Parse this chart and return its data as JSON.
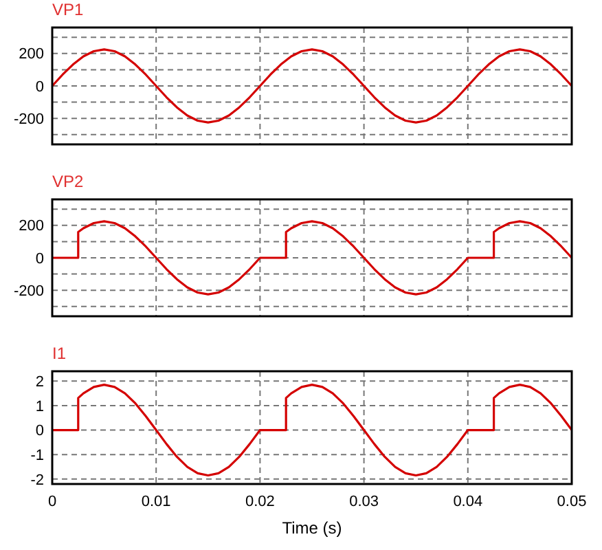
{
  "chart_data": [
    {
      "type": "line",
      "title": "VP1",
      "xlim": [
        0,
        0.05
      ],
      "xticks": [
        0,
        0.01,
        0.02,
        0.03,
        0.04,
        0.05
      ],
      "ylim": [
        -360,
        360
      ],
      "yticks": [
        {
          "value": -300,
          "label": null
        },
        -200,
        {
          "value": -100,
          "label": null
        },
        0,
        {
          "value": 100,
          "label": null
        },
        200,
        {
          "value": 300,
          "label": null
        }
      ],
      "grid": true,
      "tick_labels": "y",
      "line_style": "solid",
      "series": [
        {
          "color": "#d40000",
          "x": [
            0,
            0.001,
            0.002,
            0.003,
            0.004,
            0.005,
            0.006,
            0.007,
            0.008,
            0.009,
            0.01,
            0.011,
            0.012,
            0.013,
            0.014,
            0.015,
            0.016,
            0.017,
            0.018,
            0.019,
            0.02,
            0.021,
            0.022,
            0.023,
            0.024,
            0.025,
            0.026,
            0.027,
            0.028,
            0.029,
            0.03,
            0.031,
            0.032,
            0.033,
            0.034,
            0.035,
            0.036,
            0.037,
            0.038,
            0.039,
            0.04,
            0.041,
            0.042,
            0.043,
            0.044,
            0.045,
            0.046,
            0.047,
            0.048,
            0.049,
            0.05
          ],
          "values": [
            0,
            70,
            132,
            182,
            214,
            225,
            214,
            182,
            132,
            70,
            0,
            -70,
            -132,
            -182,
            -214,
            -225,
            -214,
            -182,
            -132,
            -70,
            0,
            70,
            132,
            182,
            214,
            225,
            214,
            182,
            132,
            70,
            0,
            -70,
            -132,
            -182,
            -214,
            -225,
            -214,
            -182,
            -132,
            -70,
            0,
            70,
            132,
            182,
            214,
            225,
            214,
            182,
            132,
            70,
            0
          ]
        }
      ]
    },
    {
      "type": "line",
      "title": "VP2",
      "xlim": [
        0,
        0.05
      ],
      "xticks": [
        0,
        0.01,
        0.02,
        0.03,
        0.04,
        0.05
      ],
      "ylim": [
        -360,
        360
      ],
      "yticks": [
        {
          "value": -300,
          "label": null
        },
        -200,
        {
          "value": -100,
          "label": null
        },
        0,
        {
          "value": 100,
          "label": null
        },
        200,
        {
          "value": 300,
          "label": null
        }
      ],
      "grid": true,
      "tick_labels": "y",
      "line_style": "solid",
      "series": [
        {
          "color": "#d40000",
          "x": [
            0,
            0.001,
            0.002,
            0.0025,
            0.0025,
            0.003,
            0.004,
            0.005,
            0.006,
            0.007,
            0.008,
            0.009,
            0.01,
            0.011,
            0.012,
            0.013,
            0.014,
            0.015,
            0.016,
            0.017,
            0.018,
            0.019,
            0.02,
            0.021,
            0.022,
            0.0225,
            0.0225,
            0.023,
            0.024,
            0.025,
            0.026,
            0.027,
            0.028,
            0.029,
            0.03,
            0.031,
            0.032,
            0.033,
            0.034,
            0.035,
            0.036,
            0.037,
            0.038,
            0.039,
            0.04,
            0.041,
            0.042,
            0.0425,
            0.0425,
            0.043,
            0.044,
            0.045,
            0.046,
            0.047,
            0.048,
            0.049,
            0.05
          ],
          "values": [
            0,
            0,
            0,
            0,
            159,
            182,
            214,
            225,
            214,
            182,
            132,
            70,
            0,
            -70,
            -132,
            -182,
            -214,
            -225,
            -214,
            -182,
            -132,
            -70,
            0,
            0,
            0,
            0,
            159,
            182,
            214,
            225,
            214,
            182,
            132,
            70,
            0,
            -70,
            -132,
            -182,
            -214,
            -225,
            -214,
            -182,
            -132,
            -70,
            0,
            0,
            0,
            0,
            159,
            182,
            214,
            225,
            214,
            182,
            132,
            70,
            0
          ]
        }
      ]
    },
    {
      "type": "line",
      "title": "I1",
      "xlabel": "Time (s)",
      "xlim": [
        0,
        0.05
      ],
      "xticks": [
        0,
        0.01,
        0.02,
        0.03,
        0.04,
        0.05
      ],
      "ylim": [
        -2.2,
        2.4
      ],
      "yticks": [
        -2,
        -1,
        0,
        1,
        2
      ],
      "grid": true,
      "line_style": "solid",
      "series": [
        {
          "color": "#d40000",
          "x": [
            0,
            0.001,
            0.002,
            0.0025,
            0.0025,
            0.003,
            0.004,
            0.005,
            0.006,
            0.007,
            0.008,
            0.009,
            0.01,
            0.011,
            0.012,
            0.013,
            0.014,
            0.015,
            0.016,
            0.017,
            0.018,
            0.019,
            0.02,
            0.021,
            0.022,
            0.0225,
            0.0225,
            0.023,
            0.024,
            0.025,
            0.026,
            0.027,
            0.028,
            0.029,
            0.03,
            0.031,
            0.032,
            0.033,
            0.034,
            0.035,
            0.036,
            0.037,
            0.038,
            0.039,
            0.04,
            0.041,
            0.042,
            0.0425,
            0.0425,
            0.043,
            0.044,
            0.045,
            0.046,
            0.047,
            0.048,
            0.049,
            0.05
          ],
          "values": [
            0,
            0,
            0,
            0,
            1.31,
            1.5,
            1.76,
            1.85,
            1.76,
            1.5,
            1.09,
            0.57,
            0,
            -0.57,
            -1.09,
            -1.5,
            -1.76,
            -1.85,
            -1.76,
            -1.5,
            -1.09,
            -0.57,
            0,
            0,
            0,
            0,
            1.31,
            1.5,
            1.76,
            1.85,
            1.76,
            1.5,
            1.09,
            0.57,
            0,
            -0.57,
            -1.09,
            -1.5,
            -1.76,
            -1.85,
            -1.76,
            -1.5,
            -1.09,
            -0.57,
            0,
            0,
            0,
            0,
            1.31,
            1.5,
            1.76,
            1.85,
            1.76,
            1.5,
            1.09,
            0.57,
            0
          ]
        }
      ]
    }
  ]
}
